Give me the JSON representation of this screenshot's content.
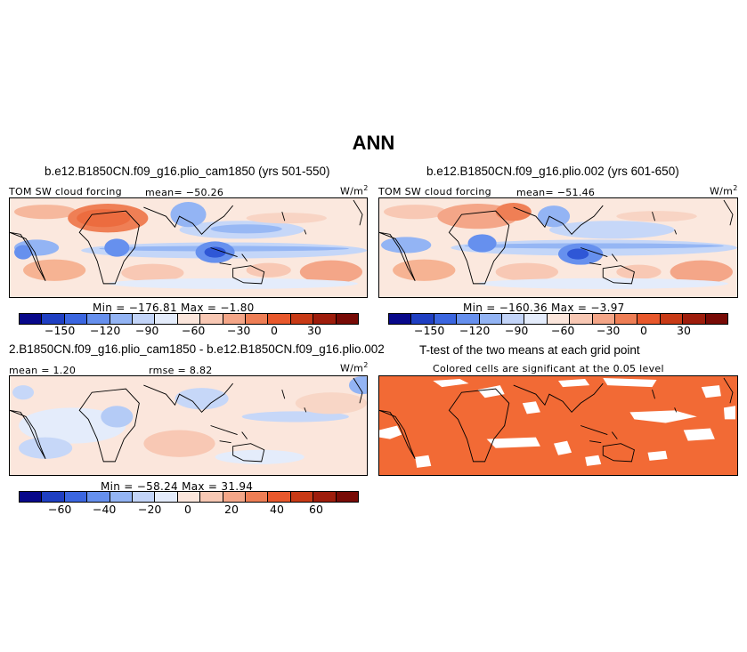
{
  "figure_title": "ANN",
  "panels": {
    "p1": {
      "title": "b.e12.B1850CN.f09_g16.plio_cam1850 (yrs 501-550)",
      "variable": "TOM SW cloud forcing",
      "mean_label": "mean= -50.26",
      "units": "W/m",
      "units_exp": "2",
      "minmax": "Min = -176.81 Max =  -1.80",
      "ticks": [
        "-150",
        "-120",
        "-90",
        "-60",
        "-30",
        "0",
        "30"
      ]
    },
    "p2": {
      "title": "b.e12.B1850CN.f09_g16.plio.002 (yrs 601-650)",
      "variable": "TOM SW cloud forcing",
      "mean_label": "mean= -51.46",
      "units": "W/m",
      "units_exp": "2",
      "minmax": "Min = -160.36 Max =  -3.97",
      "ticks": [
        "-150",
        "-120",
        "-90",
        "-60",
        "-30",
        "0",
        "30"
      ]
    },
    "p3": {
      "title": "2.B1850CN.f09_g16.plio_cam1850 - b.e12.B1850CN.f09_g16.plio.002",
      "mean_label": "mean =  1.20",
      "rmse_label": "rmse =  8.82",
      "units": "W/m",
      "units_exp": "2",
      "minmax": "Min = -58.24 Max =  31.94",
      "ticks": [
        "-60",
        "-40",
        "-20",
        "0",
        "20",
        "40",
        "60"
      ]
    },
    "p4": {
      "title": "T-test of the two means at each grid point",
      "subtitle": "Colored cells are significant at the 0.05 level"
    }
  },
  "colors": {
    "colorbar": [
      "#08088a",
      "#1f3fc2",
      "#3b66e0",
      "#6690ee",
      "#93b4f4",
      "#c2d4f8",
      "#e4ecfb",
      "#fbe6dc",
      "#f8c8b4",
      "#f4a688",
      "#ee7e55",
      "#e8582c",
      "#c83a16",
      "#9e1d0c",
      "#780b06"
    ],
    "significant": "#f26a35",
    "land_outline": "#000000"
  }
}
